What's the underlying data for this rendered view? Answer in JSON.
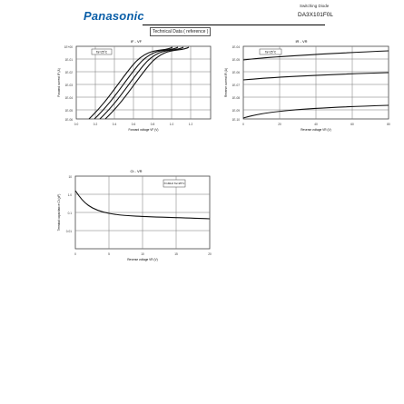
{
  "header": {
    "brand": "Panasonic",
    "subtitle": "Switching Diode",
    "part_number": "DA3X101F0L",
    "section_label": "Technical Data ( reference )"
  },
  "graphs": [
    {
      "title": "IF - VF",
      "xlabel": "Forward voltage VF (V)",
      "ylabel": "Forward current IF (A)",
      "x_ticks": [
        "0.0",
        "0.2",
        "0.4",
        "0.6",
        "0.8",
        "1.0",
        "1.2"
      ],
      "y_ticks": [
        "1E+00",
        "1E-01",
        "1E-02",
        "1E-03",
        "1E-04",
        "1E-05",
        "1E-06"
      ],
      "legend": "Ta=25°C"
    },
    {
      "title": "IR - VR",
      "xlabel": "Reverse voltage VR (V)",
      "ylabel": "Reverse current IR (A)",
      "x_ticks": [
        "0",
        "20",
        "40",
        "60",
        "80"
      ],
      "y_ticks": [
        "1E-04",
        "1E-05",
        "1E-06",
        "1E-07",
        "1E-08",
        "1E-09",
        "1E-10"
      ],
      "legend": "Ta=25°C"
    },
    {
      "title": "Ct - VR",
      "xlabel": "Reverse voltage VR (V)",
      "ylabel": "Terminal capacitance Ct (pF)",
      "x_ticks": [
        "0",
        "5",
        "10",
        "15",
        "20"
      ],
      "y_ticks": [
        "10",
        "1.0",
        "0.1",
        "0.01"
      ],
      "legend": "f=1MHz Ta=25°C"
    }
  ],
  "theme": {
    "grid": "#777777",
    "curve": "#111111",
    "logo_color": "#0b5fa8"
  }
}
